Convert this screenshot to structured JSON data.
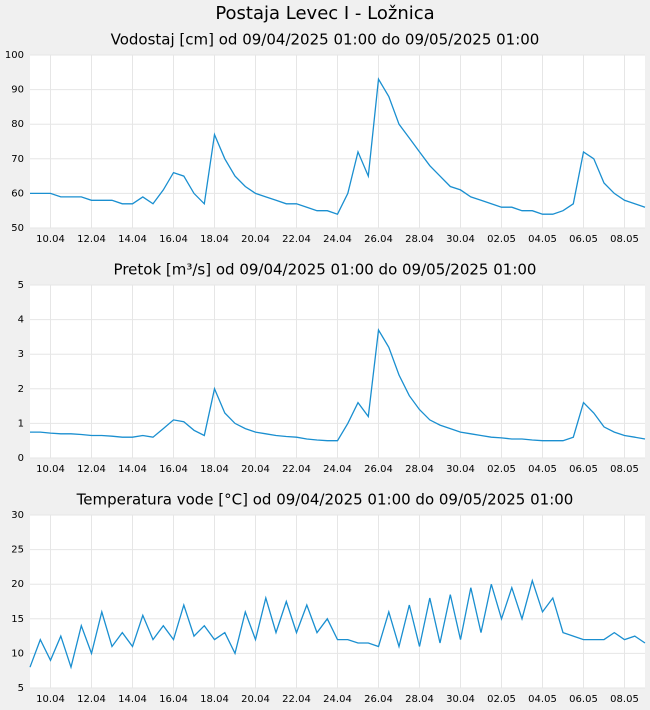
{
  "page_title": "Postaja Levec I - Ložnica",
  "chart_data": [
    {
      "type": "line",
      "title": "Vodostaj [cm] od 09/04/2025 01:00 do 09/05/2025 01:00",
      "categories": [
        null,
        null,
        "10.04",
        null,
        null,
        null,
        "12.04",
        null,
        null,
        null,
        "14.04",
        null,
        null,
        null,
        "16.04",
        null,
        null,
        null,
        "18.04",
        null,
        null,
        null,
        "20.04",
        null,
        null,
        null,
        "22.04",
        null,
        null,
        null,
        "24.04",
        null,
        null,
        null,
        "26.04",
        null,
        null,
        null,
        "28.04",
        null,
        null,
        null,
        "30.04",
        null,
        null,
        null,
        "02.05",
        null,
        null,
        null,
        "04.05",
        null,
        null,
        null,
        "06.05",
        null,
        null,
        null,
        "08.05",
        null,
        null
      ],
      "values": [
        60,
        60,
        60,
        59,
        59,
        59,
        58,
        58,
        58,
        57,
        57,
        59,
        57,
        61,
        66,
        65,
        60,
        57,
        77,
        70,
        65,
        62,
        60,
        59,
        58,
        57,
        57,
        56,
        55,
        55,
        54,
        60,
        72,
        65,
        93,
        88,
        80,
        76,
        72,
        68,
        65,
        62,
        61,
        59,
        58,
        57,
        56,
        56,
        55,
        55,
        54,
        54,
        55,
        57,
        72,
        70,
        63,
        60,
        58,
        57,
        56
      ],
      "color": "#1a8fd0",
      "ylim": [
        50,
        100
      ],
      "yticks": [
        50,
        60,
        70,
        80,
        90,
        100
      ],
      "grid": true
    },
    {
      "type": "line",
      "title": "Pretok [m³/s] od 09/04/2025 01:00 do 09/05/2025 01:00",
      "categories": [
        null,
        null,
        "10.04",
        null,
        null,
        null,
        "12.04",
        null,
        null,
        null,
        "14.04",
        null,
        null,
        null,
        "16.04",
        null,
        null,
        null,
        "18.04",
        null,
        null,
        null,
        "20.04",
        null,
        null,
        null,
        "22.04",
        null,
        null,
        null,
        "24.04",
        null,
        null,
        null,
        "26.04",
        null,
        null,
        null,
        "28.04",
        null,
        null,
        null,
        "30.04",
        null,
        null,
        null,
        "02.05",
        null,
        null,
        null,
        "04.05",
        null,
        null,
        null,
        "06.05",
        null,
        null,
        null,
        "08.05",
        null,
        null
      ],
      "values": [
        0.75,
        0.75,
        0.72,
        0.7,
        0.7,
        0.68,
        0.65,
        0.65,
        0.63,
        0.6,
        0.6,
        0.65,
        0.6,
        0.85,
        1.1,
        1.05,
        0.8,
        0.65,
        2.0,
        1.3,
        1.0,
        0.85,
        0.75,
        0.7,
        0.65,
        0.62,
        0.6,
        0.55,
        0.52,
        0.5,
        0.5,
        1.0,
        1.6,
        1.2,
        3.7,
        3.2,
        2.4,
        1.8,
        1.4,
        1.1,
        0.95,
        0.85,
        0.75,
        0.7,
        0.65,
        0.6,
        0.58,
        0.55,
        0.55,
        0.52,
        0.5,
        0.5,
        0.5,
        0.6,
        1.6,
        1.3,
        0.9,
        0.75,
        0.65,
        0.6,
        0.55
      ],
      "color": "#1a8fd0",
      "ylim": [
        0,
        5
      ],
      "yticks": [
        0,
        1,
        2,
        3,
        4,
        5
      ],
      "grid": true
    },
    {
      "type": "line",
      "title": "Temperatura vode [°C] od 09/04/2025 01:00 do 09/05/2025 01:00",
      "categories": [
        null,
        null,
        "10.04",
        null,
        null,
        null,
        "12.04",
        null,
        null,
        null,
        "14.04",
        null,
        null,
        null,
        "16.04",
        null,
        null,
        null,
        "18.04",
        null,
        null,
        null,
        "20.04",
        null,
        null,
        null,
        "22.04",
        null,
        null,
        null,
        "24.04",
        null,
        null,
        null,
        "26.04",
        null,
        null,
        null,
        "28.04",
        null,
        null,
        null,
        "30.04",
        null,
        null,
        null,
        "02.05",
        null,
        null,
        null,
        "04.05",
        null,
        null,
        null,
        "06.05",
        null,
        null,
        null,
        "08.05",
        null,
        null
      ],
      "values": [
        8,
        12,
        9,
        12.5,
        8,
        14,
        10,
        16,
        11,
        13,
        11,
        15.5,
        12,
        14,
        12,
        17,
        12.5,
        14,
        12,
        13,
        10,
        16,
        12,
        18,
        13,
        17.5,
        13,
        17,
        13,
        15,
        12,
        12,
        11.5,
        11.5,
        11,
        16,
        11,
        17,
        11,
        18,
        11.5,
        18.5,
        12,
        19.5,
        13,
        20,
        15,
        19.5,
        15,
        20.5,
        16,
        18,
        13,
        12.5,
        12,
        12,
        12,
        13,
        12,
        12.5,
        11.5
      ],
      "color": "#1a8fd0",
      "ylim": [
        5,
        30
      ],
      "yticks": [
        5,
        10,
        15,
        20,
        25,
        30
      ],
      "grid": true
    }
  ]
}
